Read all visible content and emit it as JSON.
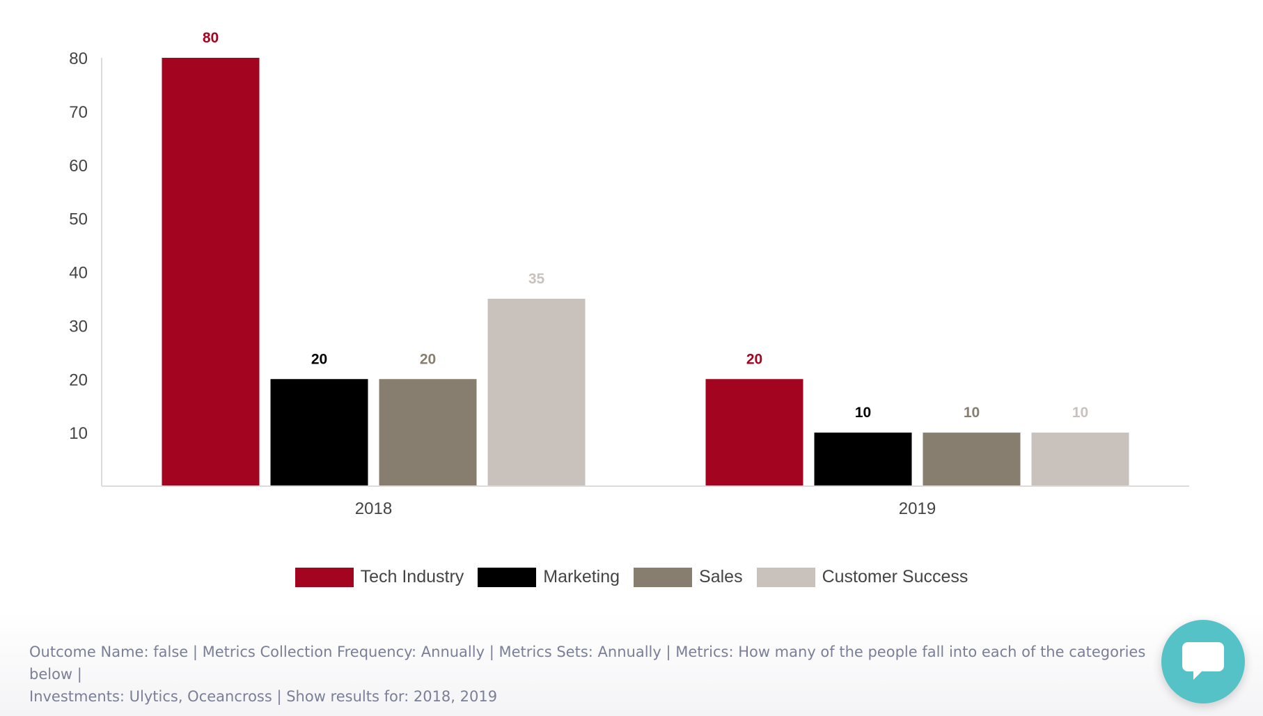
{
  "chart_data": {
    "type": "bar",
    "categories": [
      "2018",
      "2019"
    ],
    "series": [
      {
        "name": "Tech Industry",
        "color": "#a30521",
        "values": [
          80,
          20
        ]
      },
      {
        "name": "Marketing",
        "color": "#000000",
        "values": [
          20,
          10
        ]
      },
      {
        "name": "Sales",
        "color": "#877e6f",
        "values": [
          20,
          10
        ]
      },
      {
        "name": "Customer Success",
        "color": "#c9c1bc",
        "values": [
          35,
          10
        ]
      }
    ],
    "y_ticks": [
      10,
      20,
      30,
      40,
      50,
      60,
      70,
      80
    ],
    "ylim": [
      0,
      80
    ],
    "grid": false,
    "data_labels": true,
    "legend_position": "bottom-center"
  },
  "footer": {
    "line1": "Outcome Name: false | Metrics Collection Frequency: Annually | Metrics Sets: Annually | Metrics: How many of the people fall into each of the categories below |",
    "line2": "Investments: Ulytics, Oceancross | Show results for: 2018, 2019"
  },
  "chat_widget": {
    "icon": "chat-bubble-icon"
  }
}
